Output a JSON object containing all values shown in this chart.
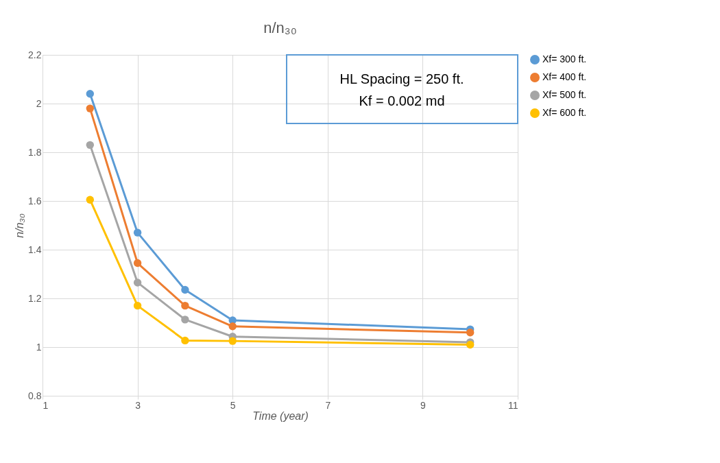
{
  "chart_data": {
    "type": "line",
    "title": "n/n₃₀",
    "xlabel": "Time (year)",
    "ylabel": "n/n₃₀",
    "annotations": [
      "HL Spacing = 250 ft.",
      "Kf = 0.002 md"
    ],
    "x": [
      2,
      3,
      4,
      5,
      10
    ],
    "series": [
      {
        "name": "Xf= 300 ft.",
        "color": "#5b9bd5",
        "values": [
          2.04,
          1.47,
          1.235,
          1.11,
          1.073
        ]
      },
      {
        "name": "Xf= 400 ft.",
        "color": "#ed7d31",
        "values": [
          1.98,
          1.345,
          1.17,
          1.085,
          1.06
        ]
      },
      {
        "name": "Xf= 500 ft.",
        "color": "#a5a5a5",
        "values": [
          1.83,
          1.265,
          1.113,
          1.043,
          1.02
        ]
      },
      {
        "name": "Xf= 600 ft.",
        "color": "#ffc000",
        "values": [
          1.605,
          1.17,
          1.027,
          1.025,
          1.01
        ]
      }
    ],
    "xlim": [
      1,
      11
    ],
    "xticks": [
      1,
      3,
      5,
      7,
      9,
      11
    ],
    "ylim": [
      0.8,
      2.2
    ],
    "yticks": [
      0.8,
      1,
      1.2,
      1.4,
      1.6,
      1.8,
      2,
      2.2
    ],
    "grid": true,
    "legend": "right",
    "marker": "circle",
    "line_style": "solid"
  }
}
